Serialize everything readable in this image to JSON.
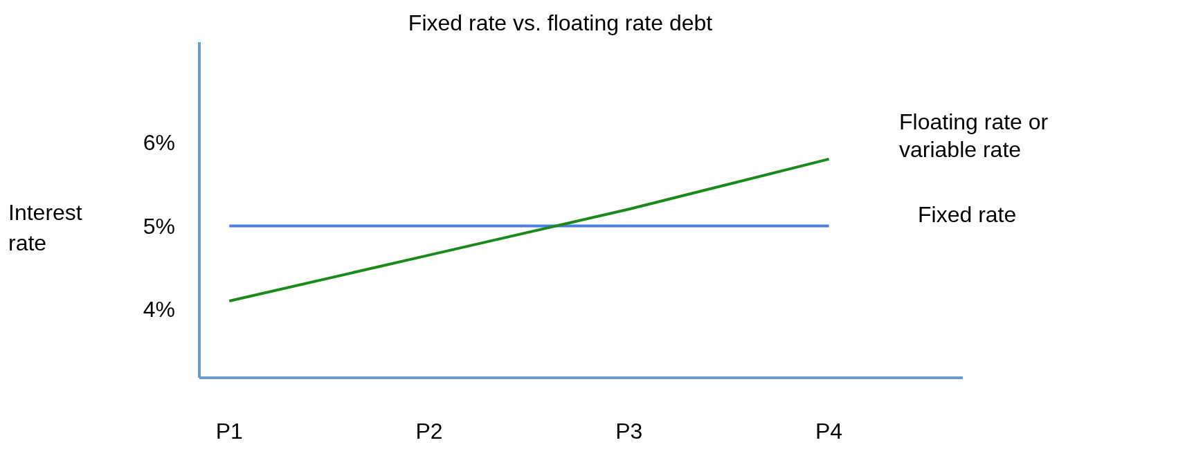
{
  "chart_data": {
    "type": "line",
    "title": "Fixed rate vs. floating rate debt",
    "ylabel": "Interest rate",
    "categories": [
      "P1",
      "P2",
      "P3",
      "P4"
    ],
    "ylim": [
      3.18,
      7.2
    ],
    "yticks": [
      {
        "value": 4,
        "label": "4%"
      },
      {
        "value": 5,
        "label": "5%"
      },
      {
        "value": 6,
        "label": "6%"
      }
    ],
    "series": [
      {
        "name": "Fixed rate",
        "color": "#4a7fe0",
        "values": [
          5,
          5,
          5,
          5
        ]
      },
      {
        "name": "Floating rate or variable rate",
        "color": "#1a8a1a",
        "values": [
          4.1,
          4.65,
          5.2,
          5.8
        ]
      }
    ]
  }
}
